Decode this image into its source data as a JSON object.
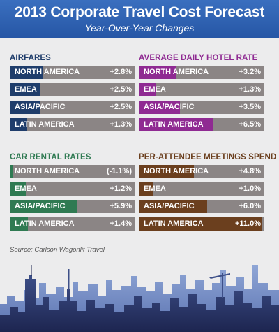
{
  "header": {
    "title": "2013 Corporate Travel Cost Forecast",
    "subtitle": "Year-Over-Year Changes"
  },
  "source": "Source: Carlson Wagonlit Travel",
  "colors": {
    "header": "#2b5fae",
    "airfares": "#1f3d6b",
    "hotel": "#8f2a92",
    "car": "#2f7a52",
    "meetings": "#6b3f1e",
    "track": "#8b8585"
  },
  "chart_data": [
    {
      "type": "bar",
      "title": "AIRFARES",
      "categories": [
        "NORTH AMERICA",
        "EMEA",
        "ASIA/PACIFIC",
        "LATIN AMERICA"
      ],
      "values": [
        2.8,
        2.5,
        2.5,
        1.3
      ],
      "labels": [
        "+2.8%",
        "+2.5%",
        "+2.5%",
        "+1.3%"
      ],
      "unit": "%",
      "color": "#1f3d6b"
    },
    {
      "type": "bar",
      "title": "AVERAGE DAILY HOTEL RATE",
      "categories": [
        "NORTH AMERICA",
        "EMEA",
        "ASIA/PACIFIC",
        "LATIN AMERICA"
      ],
      "values": [
        3.2,
        1.3,
        3.5,
        6.5
      ],
      "labels": [
        "+3.2%",
        "+1.3%",
        "+3.5%",
        "+6.5%"
      ],
      "unit": "%",
      "color": "#8f2a92"
    },
    {
      "type": "bar",
      "title": "CAR RENTAL RATES",
      "categories": [
        "NORTH AMERICA",
        "EMEA",
        "ASIA/PACIFIC",
        "LATIN AMERICA"
      ],
      "values": [
        -1.1,
        1.2,
        5.9,
        1.4
      ],
      "labels": [
        "(-1.1%)",
        "+1.2%",
        "+5.9%",
        "+1.4%"
      ],
      "unit": "%",
      "color": "#2f7a52"
    },
    {
      "type": "bar",
      "title": "PER-ATTENDEE MEETINGS SPEND",
      "categories": [
        "NORTH AMERICA",
        "EMEA",
        "ASIA/PACIFIC",
        "LATIN AMERICA"
      ],
      "values": [
        4.8,
        1.0,
        6.0,
        11.0
      ],
      "labels": [
        "+4.8%",
        "+1.0%",
        "+6.0%",
        "+11.0%"
      ],
      "unit": "%",
      "color": "#6b3f1e"
    }
  ]
}
